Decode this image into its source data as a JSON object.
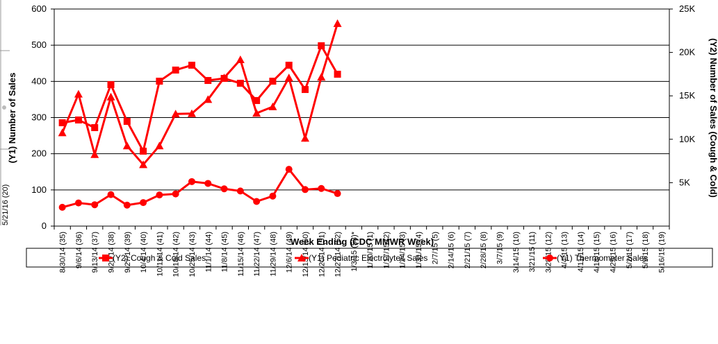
{
  "chart_data": {
    "type": "line",
    "x_label": "Week Ending (CDC MMWR Week)",
    "y_label": "(Y1) Number of Sales",
    "y2_label": "(Y2) Number of Sales (Cough & Cold)",
    "left_fragment": "5/21/16 (20)",
    "categories": [
      "8/30/14 (35)",
      "9/6/14 (36)",
      "9/13/14 (37)",
      "9/20/14 (38)",
      "9/27/14 (39)",
      "10/4/14 (40)",
      "10/11/14 (41)",
      "10/18/14 (42)",
      "10/25/14 (43)",
      "11/1/14 (44)",
      "11/8/14 (45)",
      "11/15/14 (46)",
      "11/22/14 (47)",
      "11/29/14 (48)",
      "12/6/14 (49)",
      "12/13/14 (50)",
      "12/20/14 (51)",
      "12/27/14 (52)",
      "1/3/15 (53)*",
      "1/10/15 (1)",
      "1/17/15 (2)",
      "1/24/15 (3)",
      "1/31/15 (4)",
      "2/7/15 (5)",
      "2/14/15 (6)",
      "2/21/15 (7)",
      "2/28/15 (8)",
      "3/7/15 (9)",
      "3/14/15 (10)",
      "3/21/15 (11)",
      "3/28/15 (12)",
      "4/4/15 (13)",
      "4/11/15 (14)",
      "4/18/15 (15)",
      "4/25/15 (16)",
      "5/2/15 (17)",
      "5/9/15 (18)",
      "5/16/15 (19)"
    ],
    "series": [
      {
        "name": "(Y2) Cough & Cold Sales",
        "color": "#ff0000",
        "marker": "square",
        "axis": "y2",
        "values": [
          11900,
          12220,
          11340,
          16290,
          12060,
          8630,
          16690,
          17970,
          18530,
          16770,
          17010,
          16450,
          14460,
          16690,
          18530,
          15730,
          20770,
          17490,
          null,
          null,
          null,
          null,
          null,
          null,
          null,
          null,
          null,
          null,
          null,
          null,
          null,
          null,
          null,
          null,
          null,
          null,
          null,
          null
        ]
      },
      {
        "name": "(Y1) Pediatric Electrolytes Sales",
        "color": "#ff0000",
        "marker": "triangle",
        "values": [
          258,
          365,
          198,
          357,
          222,
          170,
          222,
          310,
          311,
          350,
          410,
          460,
          312,
          330,
          410,
          243,
          412,
          560,
          null,
          null,
          null,
          null,
          null,
          null,
          null,
          null,
          null,
          null,
          null,
          null,
          null,
          null,
          null,
          null,
          null,
          null,
          null,
          null
        ]
      },
      {
        "name": "(Y1) Thermometer Sales",
        "color": "#ff0000",
        "marker": "circle",
        "values": [
          52,
          64,
          59,
          87,
          58,
          65,
          86,
          89,
          123,
          118,
          103,
          97,
          68,
          83,
          157,
          101,
          104,
          90,
          null,
          null,
          null,
          null,
          null,
          null,
          null,
          null,
          null,
          null,
          null,
          null,
          null,
          null,
          null,
          null,
          null,
          null,
          null,
          null
        ]
      }
    ],
    "ylim": [
      0,
      600
    ],
    "yticks": [
      0,
      100,
      200,
      300,
      400,
      500,
      600
    ],
    "y2lim": [
      0,
      25000
    ],
    "y2ticks": [
      {
        "value": 5000,
        "label": "5K"
      },
      {
        "value": 10000,
        "label": "10K"
      },
      {
        "value": 15000,
        "label": "15K"
      },
      {
        "value": 20000,
        "label": "20K"
      },
      {
        "value": 25000,
        "label": "25K"
      }
    ],
    "grid": true,
    "legend": "bottom"
  }
}
